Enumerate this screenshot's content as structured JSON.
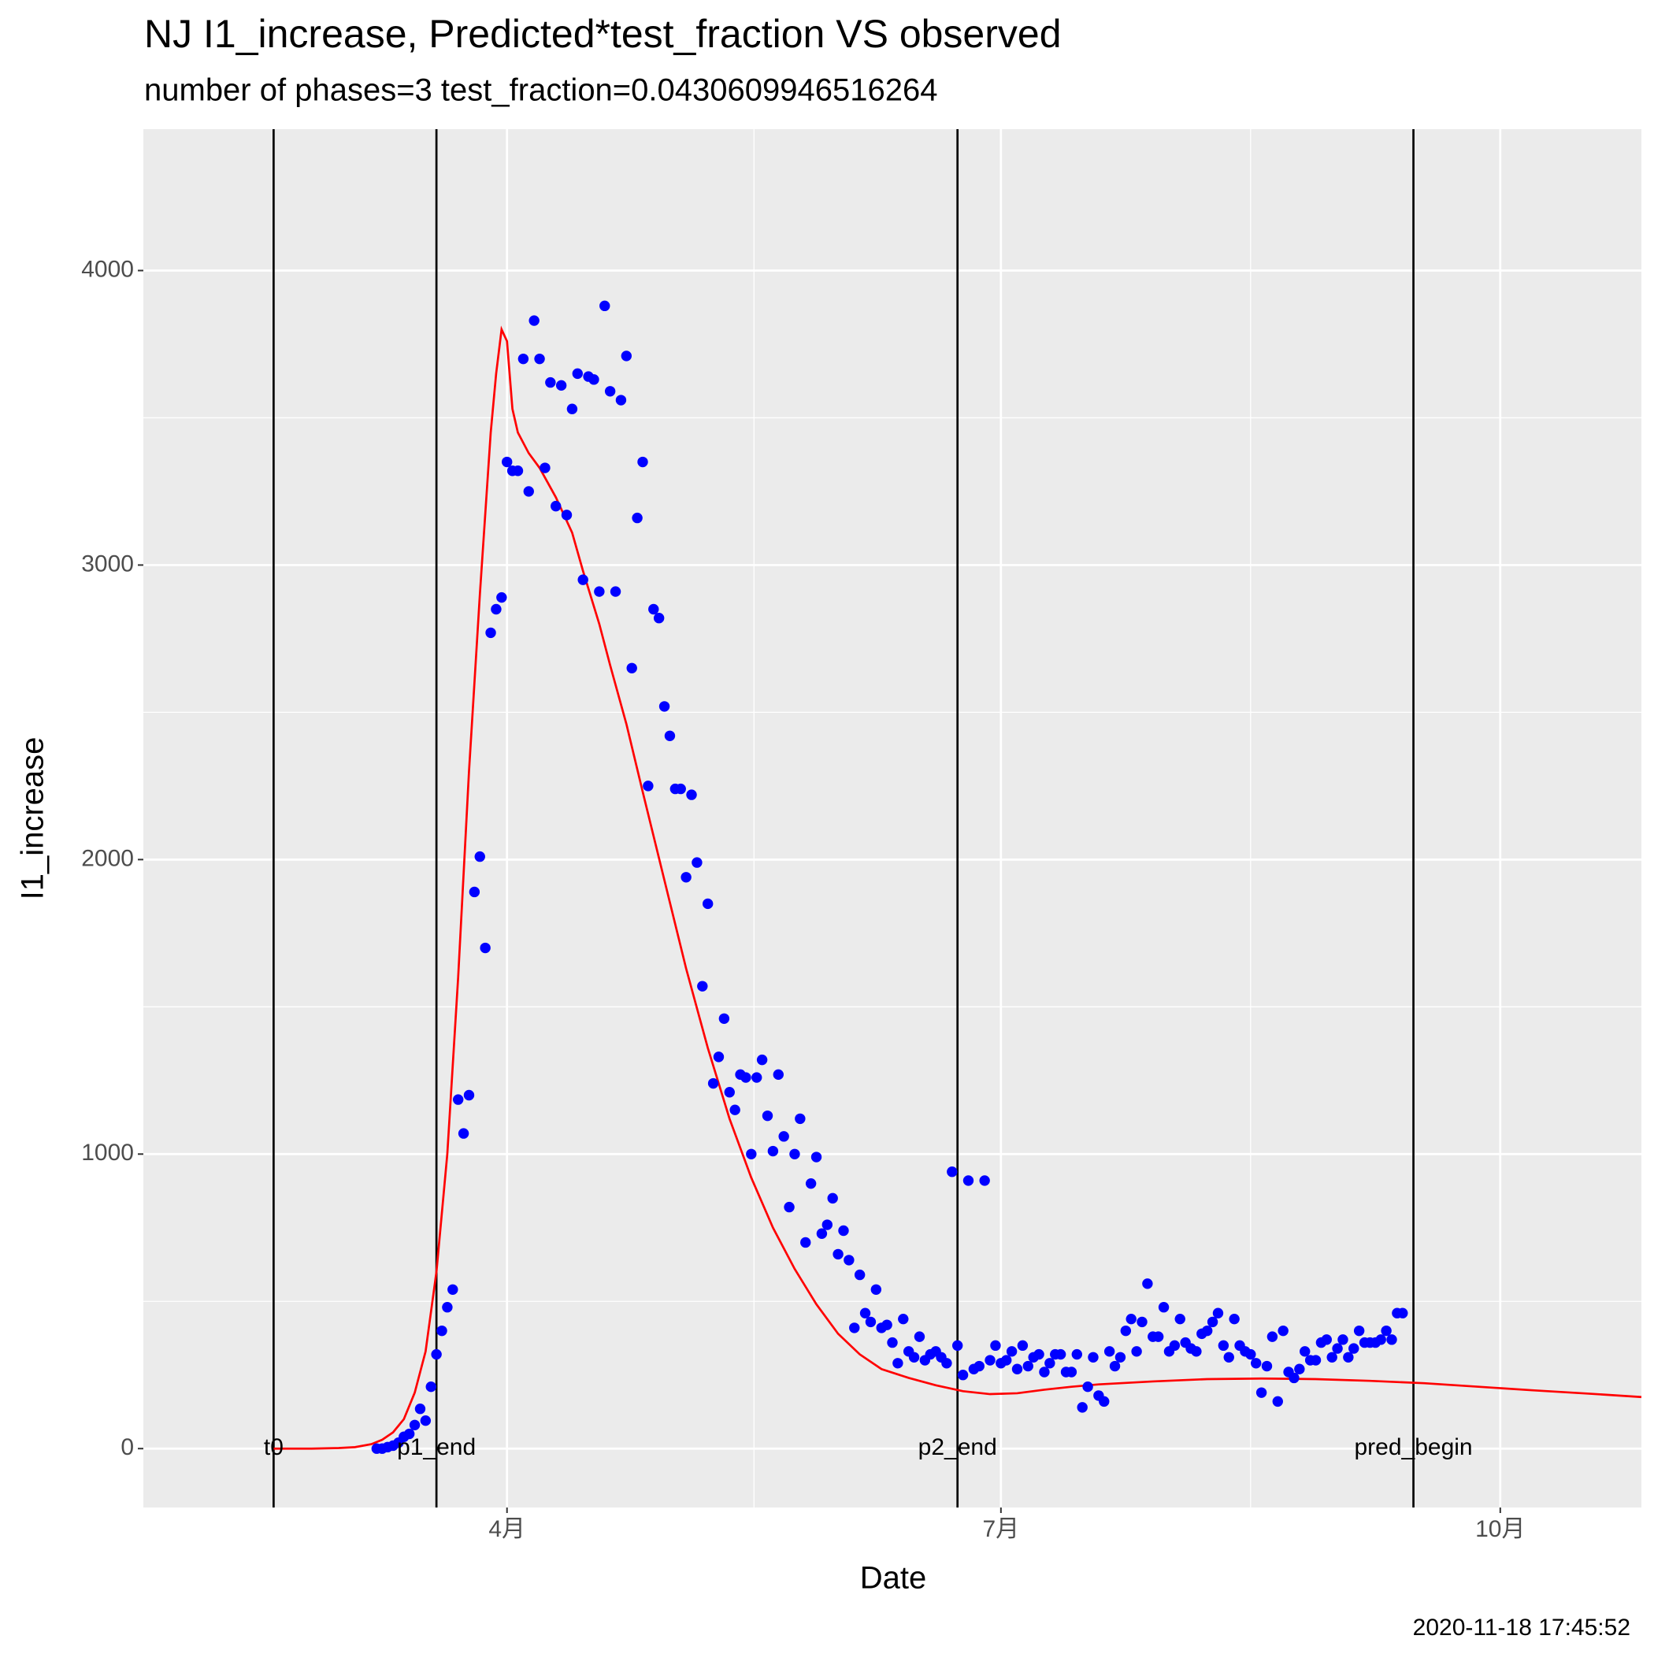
{
  "chart_data": {
    "type": "scatter",
    "title": "NJ I1_increase, Predicted*test_fraction VS observed",
    "subtitle": "number of phases=3   test_fraction=0.0430609946516264",
    "x_label": "Date",
    "y_label": "I1_increase",
    "caption": "2020-11-18 17:45:52",
    "xlim": [
      24,
      300
    ],
    "ylim": [
      -200,
      4480
    ],
    "xticks": [
      {
        "value": 91,
        "label": "4月"
      },
      {
        "value": 182,
        "label": "7月"
      },
      {
        "value": 274,
        "label": "10月"
      }
    ],
    "yticks": [
      0,
      1000,
      2000,
      3000,
      4000
    ],
    "grid": true,
    "vlines": [
      {
        "label": "t0",
        "x": 48
      },
      {
        "label": "p1_end",
        "x": 78
      },
      {
        "label": "p2_end",
        "x": 174
      },
      {
        "label": "pred_begin",
        "x": 258
      }
    ],
    "observed": {
      "color": "#0000ff",
      "x": [
        67,
        68,
        69,
        70,
        71,
        72,
        73,
        74,
        75,
        76,
        77,
        78,
        79,
        80,
        81,
        82,
        83,
        84,
        85,
        86,
        87,
        88,
        89,
        90,
        91,
        92,
        93,
        94,
        95,
        96,
        97,
        98,
        99,
        100,
        101,
        102,
        103,
        104,
        105,
        106,
        107,
        108,
        109,
        110,
        111,
        112,
        113,
        114,
        115,
        116,
        117,
        118,
        119,
        120,
        121,
        122,
        123,
        124,
        125,
        126,
        127,
        128,
        129,
        130,
        131,
        132,
        133,
        134,
        135,
        136,
        137,
        138,
        139,
        140,
        141,
        142,
        143,
        144,
        145,
        146,
        147,
        148,
        149,
        150,
        151,
        152,
        153,
        154,
        155,
        156,
        157,
        158,
        159,
        160,
        161,
        162,
        163,
        164,
        165,
        166,
        167,
        168,
        169,
        170,
        171,
        172,
        173,
        174,
        175,
        176,
        177,
        178,
        179,
        180,
        181,
        182,
        183,
        184,
        185,
        186,
        187,
        188,
        189,
        190,
        191,
        192,
        193,
        194,
        195,
        196,
        197,
        198,
        199,
        200,
        201,
        202,
        203,
        204,
        205,
        206,
        207,
        208,
        209,
        210,
        211,
        212,
        213,
        214,
        215,
        216,
        217,
        218,
        219,
        220,
        221,
        222,
        223,
        224,
        225,
        226,
        227,
        228,
        229,
        230,
        231,
        232,
        233,
        234,
        235,
        236,
        237,
        238,
        239,
        240,
        241,
        242,
        243,
        244,
        245,
        246,
        247,
        248,
        249,
        250,
        251,
        252,
        253,
        254,
        255,
        256
      ],
      "values": [
        0,
        0,
        5,
        10,
        20,
        40,
        50,
        80,
        135,
        95,
        210,
        320,
        400,
        480,
        540,
        1185,
        1070,
        1200,
        1890,
        2010,
        1700,
        2770,
        2850,
        2890,
        3350,
        3320,
        3320,
        3700,
        3250,
        3830,
        3700,
        3330,
        3620,
        3200,
        3610,
        3170,
        3530,
        3650,
        2950,
        3640,
        3630,
        2910,
        3880,
        3590,
        2910,
        3560,
        3710,
        2650,
        3160,
        3350,
        2250,
        2850,
        2820,
        2520,
        2420,
        2240,
        2240,
        1940,
        2220,
        1990,
        1570,
        1850,
        1240,
        1330,
        1460,
        1210,
        1150,
        1270,
        1260,
        1000,
        1260,
        1320,
        1130,
        1010,
        1270,
        1060,
        820,
        1000,
        1120,
        700,
        900,
        990,
        730,
        760,
        850,
        660,
        740,
        640,
        410,
        590,
        460,
        430,
        540,
        410,
        420,
        360,
        290,
        440,
        330,
        310,
        380,
        300,
        320,
        330,
        310,
        290,
        940,
        350,
        250,
        910,
        270,
        280,
        910,
        300,
        350,
        290,
        300,
        330,
        270,
        350,
        280,
        310,
        320,
        260,
        290,
        320,
        320,
        260,
        260,
        320,
        140,
        210,
        310,
        180,
        160,
        330,
        280,
        310,
        400,
        440,
        330,
        430,
        560,
        380,
        380,
        480,
        330,
        350,
        440,
        360,
        340,
        330,
        390,
        400,
        430,
        460,
        350,
        310,
        440,
        350,
        330,
        320,
        290,
        190,
        280,
        380,
        160,
        400,
        260,
        240,
        270,
        330,
        300,
        300,
        360,
        370,
        310,
        340,
        370,
        310,
        340,
        400,
        360,
        360,
        360,
        370,
        400,
        370,
        460,
        460
      ]
    },
    "predicted": {
      "color": "#ff0000",
      "x": [
        48,
        55,
        60,
        63,
        66,
        68,
        70,
        72,
        74,
        76,
        78,
        80,
        82,
        84,
        86,
        88,
        89,
        90,
        91,
        92,
        93,
        95,
        97,
        100,
        103,
        105,
        108,
        110,
        113,
        116,
        120,
        124,
        128,
        132,
        136,
        140,
        144,
        148,
        152,
        156,
        160,
        165,
        170,
        175,
        180,
        185,
        190,
        195,
        200,
        210,
        220,
        230,
        240,
        250,
        260,
        270,
        280,
        290,
        300
      ],
      "values": [
        0,
        0,
        2,
        5,
        15,
        30,
        55,
        100,
        190,
        330,
        600,
        1000,
        1600,
        2300,
        2900,
        3450,
        3650,
        3800,
        3760,
        3530,
        3450,
        3380,
        3330,
        3230,
        3110,
        2980,
        2800,
        2660,
        2460,
        2230,
        1930,
        1630,
        1360,
        1120,
        920,
        750,
        610,
        490,
        390,
        320,
        270,
        240,
        215,
        195,
        185,
        188,
        200,
        210,
        218,
        228,
        236,
        238,
        236,
        230,
        222,
        210,
        198,
        187,
        175
      ]
    }
  }
}
